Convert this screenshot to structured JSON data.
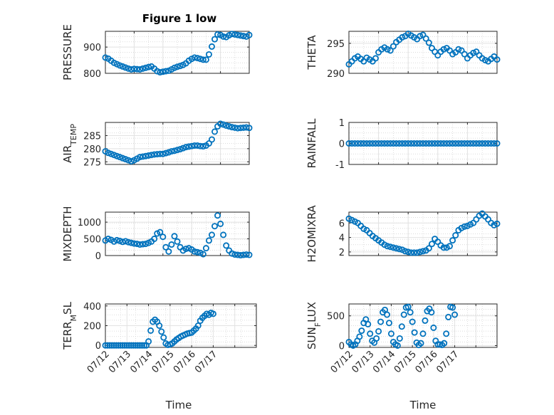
{
  "figure": {
    "title": "Figure 1 low",
    "xlabel": "Time",
    "time_ticks": [
      "07/12",
      "07/13",
      "07/14",
      "07/15",
      "07/16",
      "07/17"
    ],
    "marker_color": "#0072BD"
  },
  "chart_data": [
    {
      "type": "scatter",
      "name": "pressure",
      "ylabel": "PRESSURE",
      "ylabel_sub": "",
      "ylim": [
        800,
        960
      ],
      "yticks": [
        800,
        900
      ],
      "xlim": [
        0,
        5
      ],
      "grid": true,
      "x": [
        0.0,
        0.1,
        0.2,
        0.3,
        0.4,
        0.5,
        0.6,
        0.7,
        0.8,
        0.9,
        1.0,
        1.1,
        1.2,
        1.3,
        1.4,
        1.5,
        1.6,
        1.7,
        1.8,
        1.9,
        2.0,
        2.1,
        2.2,
        2.3,
        2.4,
        2.5,
        2.6,
        2.7,
        2.8,
        2.9,
        3.0,
        3.1,
        3.2,
        3.3,
        3.4,
        3.5,
        3.6,
        3.7,
        3.8,
        3.9,
        4.0,
        4.1,
        4.2,
        4.3,
        4.4,
        4.5,
        4.6,
        4.7,
        4.8,
        4.9,
        5.0
      ],
      "y": [
        860,
        856,
        848,
        840,
        835,
        830,
        826,
        822,
        818,
        815,
        817,
        816,
        815,
        818,
        821,
        824,
        826,
        818,
        808,
        804,
        806,
        808,
        810,
        815,
        821,
        825,
        828,
        832,
        838,
        848,
        855,
        860,
        858,
        855,
        852,
        852,
        872,
        902,
        930,
        948,
        946,
        940,
        938,
        945,
        950,
        948,
        946,
        944,
        942,
        940,
        946
      ]
    },
    {
      "type": "scatter",
      "name": "theta",
      "ylabel": "THETA",
      "ylabel_sub": "",
      "ylim": [
        290,
        297
      ],
      "yticks": [
        290,
        295
      ],
      "xlim": [
        0,
        5
      ],
      "grid": true,
      "x": [
        0.0,
        0.1,
        0.2,
        0.3,
        0.4,
        0.5,
        0.6,
        0.7,
        0.8,
        0.9,
        1.0,
        1.1,
        1.2,
        1.3,
        1.4,
        1.5,
        1.6,
        1.7,
        1.8,
        1.9,
        2.0,
        2.1,
        2.2,
        2.3,
        2.4,
        2.5,
        2.6,
        2.7,
        2.8,
        2.9,
        3.0,
        3.1,
        3.2,
        3.3,
        3.4,
        3.5,
        3.6,
        3.7,
        3.8,
        3.9,
        4.0,
        4.1,
        4.2,
        4.3,
        4.4,
        4.5,
        4.6,
        4.7,
        4.8,
        4.9,
        5.0
      ],
      "y": [
        291.5,
        292.0,
        292.5,
        292.8,
        292.4,
        292.0,
        292.6,
        292.3,
        292.0,
        292.5,
        293.5,
        294.0,
        294.3,
        294.0,
        293.8,
        294.5,
        295.2,
        295.6,
        296.0,
        296.2,
        296.6,
        296.3,
        296.0,
        295.7,
        296.2,
        296.4,
        295.8,
        295.1,
        294.2,
        293.6,
        293.0,
        293.6,
        294.0,
        294.2,
        293.8,
        293.2,
        293.5,
        294.0,
        293.8,
        293.2,
        292.5,
        293.0,
        293.4,
        293.6,
        293.0,
        292.5,
        292.2,
        292.0,
        292.4,
        292.8,
        292.3
      ]
    },
    {
      "type": "scatter",
      "name": "air_temp",
      "ylabel": "AIR",
      "ylabel_sub": "TEMP",
      "ylim": [
        274,
        290
      ],
      "yticks": [
        275,
        280,
        285
      ],
      "xlim": [
        0,
        5
      ],
      "grid": true,
      "x": [
        0.0,
        0.1,
        0.2,
        0.3,
        0.4,
        0.5,
        0.6,
        0.7,
        0.8,
        0.9,
        1.0,
        1.1,
        1.2,
        1.3,
        1.4,
        1.5,
        1.6,
        1.7,
        1.8,
        1.9,
        2.0,
        2.1,
        2.2,
        2.3,
        2.4,
        2.5,
        2.6,
        2.7,
        2.8,
        2.9,
        3.0,
        3.1,
        3.2,
        3.3,
        3.4,
        3.5,
        3.6,
        3.7,
        3.8,
        3.9,
        4.0,
        4.1,
        4.2,
        4.3,
        4.4,
        4.5,
        4.6,
        4.7,
        4.8,
        4.9,
        5.0
      ],
      "y": [
        279,
        278.4,
        278,
        277.6,
        277.2,
        276.8,
        276.4,
        276,
        275.6,
        275.2,
        275.6,
        276.2,
        276.8,
        277,
        277.2,
        277.4,
        277.6,
        277.8,
        277.9,
        278,
        278,
        278.3,
        278.6,
        279,
        279.2,
        279.5,
        279.8,
        280.2,
        280.6,
        280.8,
        281,
        281.2,
        281.2,
        281,
        280.9,
        281.2,
        282,
        283.5,
        286.5,
        288.5,
        289.5,
        289.2,
        288.8,
        288.5,
        288.2,
        288.0,
        287.8,
        287.9,
        288.0,
        288.1,
        287.9
      ]
    },
    {
      "type": "scatter",
      "name": "rainfall",
      "ylabel": "RAINFALL",
      "ylabel_sub": "",
      "ylim": [
        -1,
        1
      ],
      "yticks": [
        -1,
        0,
        1
      ],
      "xlim": [
        0,
        5
      ],
      "grid": true,
      "x": [
        0.0,
        0.1,
        0.2,
        0.3,
        0.4,
        0.5,
        0.6,
        0.7,
        0.8,
        0.9,
        1.0,
        1.1,
        1.2,
        1.3,
        1.4,
        1.5,
        1.6,
        1.7,
        1.8,
        1.9,
        2.0,
        2.1,
        2.2,
        2.3,
        2.4,
        2.5,
        2.6,
        2.7,
        2.8,
        2.9,
        3.0,
        3.1,
        3.2,
        3.3,
        3.4,
        3.5,
        3.6,
        3.7,
        3.8,
        3.9,
        4.0,
        4.1,
        4.2,
        4.3,
        4.4,
        4.5,
        4.6,
        4.7,
        4.8,
        4.9,
        5.0
      ],
      "y": [
        0,
        0,
        0,
        0,
        0,
        0,
        0,
        0,
        0,
        0,
        0,
        0,
        0,
        0,
        0,
        0,
        0,
        0,
        0,
        0,
        0,
        0,
        0,
        0,
        0,
        0,
        0,
        0,
        0,
        0,
        0,
        0,
        0,
        0,
        0,
        0,
        0,
        0,
        0,
        0,
        0,
        0,
        0,
        0,
        0,
        0,
        0,
        0,
        0,
        0,
        0
      ]
    },
    {
      "type": "scatter",
      "name": "mixdepth",
      "ylabel": "MIXDEPTH",
      "ylabel_sub": "",
      "ylim": [
        0,
        1300
      ],
      "yticks": [
        0,
        500,
        1000
      ],
      "xlim": [
        0,
        5
      ],
      "grid": true,
      "x": [
        0.0,
        0.1,
        0.2,
        0.3,
        0.4,
        0.5,
        0.6,
        0.7,
        0.8,
        0.9,
        1.0,
        1.1,
        1.2,
        1.3,
        1.4,
        1.5,
        1.6,
        1.7,
        1.8,
        1.9,
        2.0,
        2.1,
        2.2,
        2.3,
        2.4,
        2.5,
        2.6,
        2.7,
        2.8,
        2.9,
        3.0,
        3.1,
        3.2,
        3.3,
        3.4,
        3.5,
        3.6,
        3.7,
        3.8,
        3.9,
        4.0,
        4.1,
        4.2,
        4.3,
        4.4,
        4.5,
        4.6,
        4.7,
        4.8,
        4.9,
        5.0
      ],
      "y": [
        450,
        500,
        470,
        420,
        460,
        440,
        410,
        430,
        400,
        380,
        360,
        350,
        330,
        340,
        350,
        380,
        420,
        500,
        660,
        700,
        560,
        250,
        120,
        330,
        580,
        420,
        250,
        150,
        200,
        220,
        180,
        120,
        100,
        80,
        40,
        220,
        450,
        620,
        880,
        1200,
        950,
        620,
        300,
        150,
        60,
        30,
        20,
        10,
        20,
        30,
        20
      ]
    },
    {
      "type": "scatter",
      "name": "h2omixra",
      "ylabel": "H2OMIXRA",
      "ylabel_sub": "",
      "ylim": [
        1.5,
        7.5
      ],
      "yticks": [
        2,
        4,
        6
      ],
      "xlim": [
        0,
        5
      ],
      "grid": true,
      "x": [
        0.0,
        0.1,
        0.2,
        0.3,
        0.4,
        0.5,
        0.6,
        0.7,
        0.8,
        0.9,
        1.0,
        1.1,
        1.2,
        1.3,
        1.4,
        1.5,
        1.6,
        1.7,
        1.8,
        1.9,
        2.0,
        2.1,
        2.2,
        2.3,
        2.4,
        2.5,
        2.6,
        2.7,
        2.8,
        2.9,
        3.0,
        3.1,
        3.2,
        3.3,
        3.4,
        3.5,
        3.6,
        3.7,
        3.8,
        3.9,
        4.0,
        4.1,
        4.2,
        4.3,
        4.4,
        4.5,
        4.6,
        4.7,
        4.8,
        4.9,
        5.0
      ],
      "y": [
        6.6,
        6.4,
        6.2,
        6.0,
        5.6,
        5.2,
        5.0,
        4.6,
        4.2,
        3.9,
        3.6,
        3.3,
        3.0,
        2.8,
        2.7,
        2.6,
        2.5,
        2.4,
        2.3,
        2.1,
        2.0,
        1.9,
        1.9,
        1.9,
        2.0,
        2.1,
        2.2,
        2.5,
        3.1,
        3.8,
        3.4,
        2.9,
        2.6,
        2.6,
        2.8,
        3.6,
        4.3,
        5.0,
        5.3,
        5.5,
        5.6,
        5.8,
        6.0,
        6.5,
        7.0,
        7.3,
        6.9,
        6.5,
        6.0,
        5.7,
        5.9
      ]
    },
    {
      "type": "scatter",
      "name": "terr_msl",
      "ylabel": "TERR",
      "ylabel_sub": "M",
      "ylabel_suffix": "SL",
      "ylim": [
        -20,
        420
      ],
      "yticks": [
        0,
        200,
        400
      ],
      "xlim": [
        0,
        7
      ],
      "grid": true,
      "x": [
        0.0,
        0.1,
        0.2,
        0.3,
        0.4,
        0.5,
        0.6,
        0.7,
        0.8,
        0.9,
        1.0,
        1.1,
        1.2,
        1.3,
        1.4,
        1.5,
        1.6,
        1.7,
        1.8,
        1.9,
        2.0,
        2.1,
        2.2,
        2.3,
        2.4,
        2.5,
        2.6,
        2.7,
        2.8,
        2.9,
        3.0,
        3.1,
        3.2,
        3.3,
        3.4,
        3.5,
        3.6,
        3.7,
        3.8,
        3.9,
        4.0,
        4.1,
        4.2,
        4.3,
        4.4,
        4.5,
        4.6,
        4.7,
        4.8,
        4.9,
        5.0
      ],
      "y": [
        0,
        0,
        0,
        0,
        0,
        0,
        0,
        0,
        0,
        0,
        0,
        0,
        0,
        0,
        0,
        0,
        0,
        0,
        0,
        0,
        40,
        150,
        240,
        260,
        240,
        200,
        140,
        80,
        20,
        5,
        10,
        20,
        40,
        60,
        75,
        90,
        100,
        110,
        120,
        125,
        130,
        150,
        170,
        200,
        250,
        280,
        300,
        320,
        310,
        330,
        320
      ]
    },
    {
      "type": "scatter",
      "name": "sun_flux",
      "ylabel": "SUN",
      "ylabel_sub": "F",
      "ylabel_suffix": "LUX",
      "ylim": [
        -30,
        700
      ],
      "yticks": [
        0,
        500
      ],
      "xlim": [
        0,
        7
      ],
      "grid": true,
      "x": [
        0.0,
        0.1,
        0.2,
        0.3,
        0.4,
        0.5,
        0.6,
        0.7,
        0.8,
        0.9,
        1.0,
        1.1,
        1.2,
        1.3,
        1.4,
        1.5,
        1.6,
        1.7,
        1.8,
        1.9,
        2.0,
        2.1,
        2.2,
        2.3,
        2.4,
        2.5,
        2.6,
        2.7,
        2.8,
        2.9,
        3.0,
        3.1,
        3.2,
        3.3,
        3.4,
        3.5,
        3.6,
        3.7,
        3.8,
        3.9,
        4.0,
        4.1,
        4.2,
        4.3,
        4.4,
        4.5,
        4.6,
        4.7,
        4.8,
        4.9,
        5.0
      ],
      "y": [
        60,
        20,
        0,
        20,
        80,
        150,
        250,
        380,
        440,
        360,
        200,
        80,
        50,
        120,
        240,
        400,
        560,
        600,
        520,
        380,
        200,
        60,
        20,
        0,
        120,
        320,
        520,
        640,
        650,
        560,
        400,
        220,
        50,
        10,
        40,
        200,
        420,
        580,
        620,
        560,
        300,
        80,
        20,
        20,
        10,
        40,
        200,
        480,
        650,
        640,
        520
      ]
    }
  ]
}
